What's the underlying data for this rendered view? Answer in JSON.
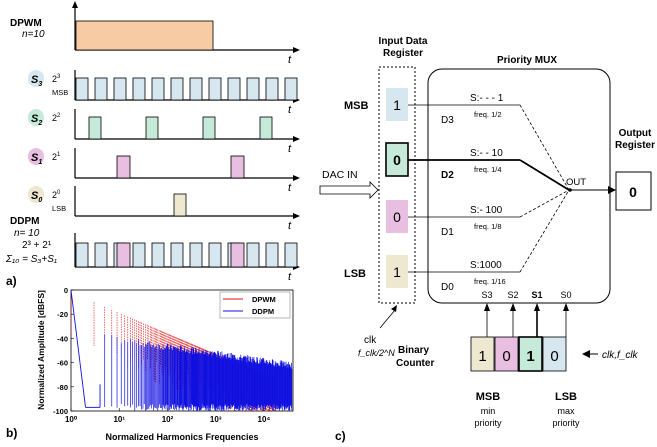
{
  "panel_a": {
    "label": "a)",
    "time_label": "t",
    "dpwm": {
      "title": "DPWM",
      "n": "n=10",
      "fill": "#f7cba4"
    },
    "bits": [
      {
        "name": "S3",
        "sym": "S",
        "sub": "3",
        "weight": "2",
        "exp": "3",
        "tag": "MSB",
        "fill": "#d6e7ef"
      },
      {
        "name": "S2",
        "sym": "S",
        "sub": "2",
        "weight": "2",
        "exp": "2",
        "tag": "",
        "fill": "#c5ead9"
      },
      {
        "name": "S1",
        "sym": "S",
        "sub": "1",
        "weight": "2",
        "exp": "1",
        "tag": "",
        "fill": "#e8bfe0"
      },
      {
        "name": "S0",
        "sym": "S",
        "sub": "0",
        "weight": "2",
        "exp": "0",
        "tag": "LSB",
        "fill": "#ede8cf"
      }
    ],
    "ddpm": {
      "title": "DDPM",
      "n": "n= 10",
      "sum": "2³ + 2¹",
      "sigma": "Σ₁₀ = S₃+S₁"
    }
  },
  "panel_b": {
    "label": "b)",
    "chart_data": {
      "type": "line",
      "xlabel": "Normalized Harmonics Frequencies",
      "ylabel": "Normalized Amplitude [dBFS]",
      "x_scale": "log",
      "xlim": [
        1,
        40000
      ],
      "ylim": [
        -100,
        0
      ],
      "x_ticks": [
        "10⁰",
        "10¹",
        "10²",
        "10³",
        "10⁴"
      ],
      "y_ticks": [
        "0",
        "-20",
        "-40",
        "-60",
        "-80",
        "-100"
      ],
      "legend_position": "top-right",
      "series": [
        {
          "name": "DPWM",
          "color": "#e01010"
        },
        {
          "name": "DDPM",
          "color": "#1010e0"
        }
      ]
    }
  },
  "panel_c": {
    "label": "c)",
    "input_register": {
      "title_line1": "Input Data",
      "title_line2": "Register"
    },
    "mux": {
      "title": "Priority MUX"
    },
    "output": {
      "title_line1": "Output",
      "title_line2": "Register",
      "value": "0"
    },
    "dac_in": "DAC IN",
    "out": "OUT",
    "msb": "MSB",
    "lsb": "LSB",
    "clk_left": {
      "line1": "clk",
      "line2": "f_clk/2^N"
    },
    "rows": [
      {
        "value": "1",
        "fill": "#d6e7ef",
        "sel": "S:- - - 1",
        "freq": "freq. 1/2",
        "d": "D3",
        "bold": false
      },
      {
        "value": "0",
        "fill": "#c5ead9",
        "sel": "S:- - 10",
        "freq": "freq. 1/4",
        "d": "D2",
        "bold": true
      },
      {
        "value": "0",
        "fill": "#e8bfe0",
        "sel": "S:- 100",
        "freq": "freq. 1/8",
        "d": "D1",
        "bold": false
      },
      {
        "value": "1",
        "fill": "#ede8cf",
        "sel": "S:1000",
        "freq": "freq. 1/16",
        "d": "D0",
        "bold": false
      }
    ],
    "counter": {
      "title_line1": "Binary",
      "title_line2": "Counter",
      "cells": [
        {
          "value": "1",
          "fill": "#ede8cf",
          "label": "S3",
          "bold": false
        },
        {
          "value": "0",
          "fill": "#e8bfe0",
          "label": "S2",
          "bold": false
        },
        {
          "value": "1",
          "fill": "#c5ead9",
          "label": "S1",
          "bold": true
        },
        {
          "value": "0",
          "fill": "#d6e7ef",
          "label": "S0",
          "bold": false
        }
      ],
      "msb": "MSB",
      "msb_sub1": "min",
      "msb_sub2": "priority",
      "lsb": "LSB",
      "lsb_sub1": "max",
      "lsb_sub2": "priority",
      "clk": "clk,f_clk"
    }
  }
}
